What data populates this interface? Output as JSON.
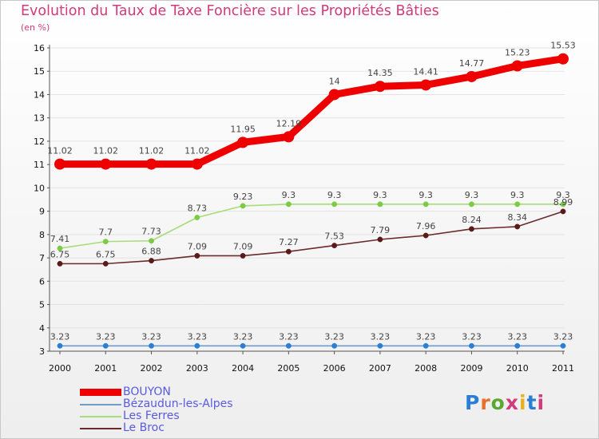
{
  "title": "Evolution du Taux de Taxe Foncière sur les Propriétés Bâties",
  "subtitle": "(en %)",
  "brand": {
    "text": "Proxiti",
    "colors": [
      "#2a7fd4",
      "#e8702a",
      "#5aa832",
      "#d23a7a",
      "#e8b020",
      "#2a7fd4",
      "#d23a7a"
    ]
  },
  "chart_data": {
    "type": "line",
    "title": "Evolution du Taux de Taxe Foncière sur les Propriétés Bâties",
    "ylabel": "(en %)",
    "xlabel": "",
    "ylim": [
      3,
      16
    ],
    "yticks": [
      "3",
      "4",
      "5",
      "6",
      "7",
      "8",
      "9",
      "10",
      "11",
      "12",
      "13",
      "14",
      "15",
      "16"
    ],
    "categories": [
      "2000",
      "2001",
      "2002",
      "2003",
      "2004",
      "2005",
      "2006",
      "2007",
      "2008",
      "2009",
      "2010",
      "2011"
    ],
    "legend_position": "bottom-left",
    "series": [
      {
        "name": "BOUYON",
        "color": "#ee0000",
        "thick": true,
        "values": [
          11.02,
          11.02,
          11.02,
          11.02,
          11.95,
          12.19,
          14,
          14.35,
          14.41,
          14.77,
          15.23,
          15.53
        ],
        "labels": [
          "11.02",
          "11.02",
          "11.02",
          "11.02",
          "11.95",
          "12.19",
          "14",
          "14.35",
          "14.41",
          "14.77",
          "15.23",
          "15.53"
        ]
      },
      {
        "name": "Bézaudun-les-Alpes",
        "color": "#6f9cc8",
        "marker": "#2a7fd4",
        "thick": false,
        "values": [
          3.23,
          3.23,
          3.23,
          3.23,
          3.23,
          3.23,
          3.23,
          3.23,
          3.23,
          3.23,
          3.23,
          3.23
        ],
        "labels": [
          "3.23",
          "3.23",
          "3.23",
          "3.23",
          "3.23",
          "3.23",
          "3.23",
          "3.23",
          "3.23",
          "3.23",
          "3.23",
          "3.23"
        ]
      },
      {
        "name": "Les Ferres",
        "color": "#a8dc78",
        "marker": "#7acc44",
        "thick": false,
        "values": [
          7.41,
          7.7,
          7.73,
          8.73,
          9.23,
          9.3,
          9.3,
          9.3,
          9.3,
          9.3,
          9.3,
          9.3
        ],
        "labels": [
          "7.41",
          "7.7",
          "7.73",
          "8.73",
          "9.23",
          "9.3",
          "9.3",
          "9.3",
          "9.3",
          "9.3",
          "9.3",
          "9.3"
        ]
      },
      {
        "name": "Le Broc",
        "color": "#6b2a2a",
        "marker": "#5a1a1a",
        "thick": false,
        "values": [
          6.75,
          6.75,
          6.88,
          7.09,
          7.09,
          7.27,
          7.53,
          7.79,
          7.96,
          8.24,
          8.34,
          8.99
        ],
        "labels": [
          "6.75",
          "6.75",
          "6.88",
          "7.09",
          "7.09",
          "7.27",
          "7.53",
          "7.79",
          "7.96",
          "8.24",
          "8.34",
          "8.99"
        ]
      }
    ]
  }
}
